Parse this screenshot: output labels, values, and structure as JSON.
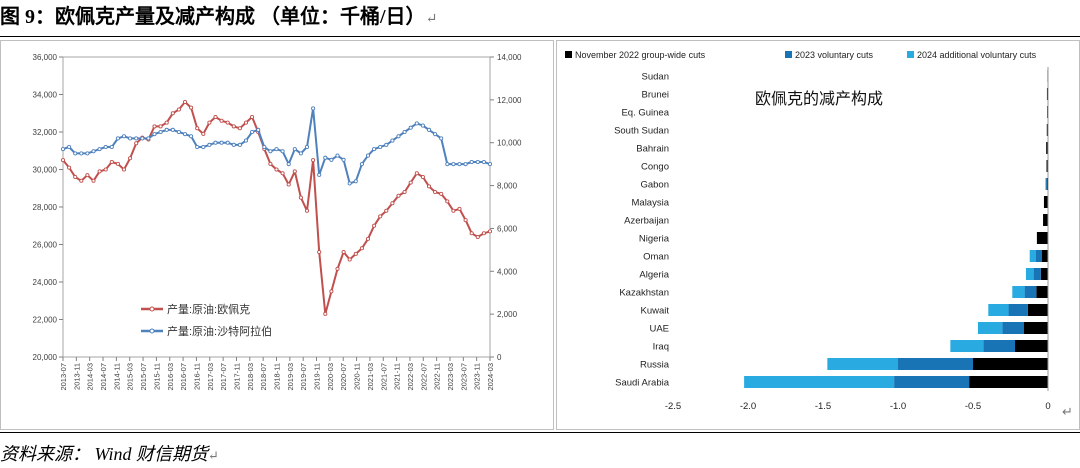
{
  "page": {
    "title": "图 9：欧佩克产量及减产构成 （单位：千桶/日）",
    "return_mark": "↵",
    "source": "资料来源： Wind 财信期货"
  },
  "chart_data": [
    {
      "type": "line",
      "title": "",
      "left_axis": {
        "ylim": [
          20000,
          36000
        ],
        "ticks": [
          "20,000",
          "22,000",
          "24,000",
          "26,000",
          "28,000",
          "30,000",
          "32,000",
          "34,000",
          "36,000"
        ]
      },
      "right_axis": {
        "ylim": [
          0,
          14000
        ],
        "ticks": [
          "0",
          "2,000",
          "4,000",
          "6,000",
          "8,000",
          "10,000",
          "12,000",
          "14,000"
        ]
      },
      "x_ticks": [
        "2013-07",
        "2013-11",
        "2014-03",
        "2014-07",
        "2014-11",
        "2015-03",
        "2015-07",
        "2015-11",
        "2016-03",
        "2016-07",
        "2016-11",
        "2017-03",
        "2017-07",
        "2017-11",
        "2018-03",
        "2018-07",
        "2018-11",
        "2019-03",
        "2019-07",
        "2019-11",
        "2020-03",
        "2020-07",
        "2020-11",
        "2021-03",
        "2021-07",
        "2021-11",
        "2022-03",
        "2022-07",
        "2022-11",
        "2023-03",
        "2023-07",
        "2023-11",
        "2024-03"
      ],
      "series": [
        {
          "name": "产量:原油:欧佩克",
          "axis": "left",
          "color": "#c0504d",
          "values": [
            30500,
            30100,
            29600,
            29400,
            29700,
            29400,
            29900,
            30000,
            30400,
            30300,
            30000,
            30600,
            31400,
            31700,
            31600,
            32300,
            32300,
            32500,
            33000,
            33200,
            33600,
            33300,
            32200,
            31900,
            32500,
            32800,
            32600,
            32500,
            32300,
            32200,
            32500,
            32800,
            32000,
            31100,
            30300,
            30000,
            29800,
            29200,
            29900,
            28500,
            27800,
            30500,
            25600,
            22300,
            23500,
            24700,
            25600,
            25200,
            25500,
            25800,
            26300,
            27000,
            27500,
            27800,
            28200,
            28600,
            28800,
            29300,
            29800,
            29600,
            29100,
            28800,
            28700,
            28300,
            27800,
            27900,
            27300,
            26600,
            26400,
            26600,
            26700
          ]
        },
        {
          "name": "产量:原油:沙特阿拉伯",
          "axis": "right",
          "color": "#4f81bd",
          "values": [
            9700,
            9800,
            9500,
            9500,
            9500,
            9600,
            9700,
            9800,
            9800,
            10200,
            10300,
            10200,
            10200,
            10200,
            10200,
            10400,
            10500,
            10600,
            10600,
            10500,
            10400,
            10300,
            9800,
            9800,
            9900,
            10000,
            10000,
            10000,
            9900,
            9900,
            10100,
            10500,
            10600,
            9800,
            9600,
            9700,
            9600,
            9000,
            9700,
            9500,
            9800,
            11600,
            8500,
            9300,
            9200,
            9400,
            9200,
            8100,
            8200,
            9000,
            9400,
            9700,
            9800,
            9900,
            10100,
            10300,
            10500,
            10700,
            10900,
            10800,
            10600,
            10400,
            10200,
            9000,
            9000,
            9000,
            9000,
            9100,
            9100,
            9100,
            9000
          ]
        }
      ]
    },
    {
      "type": "bar",
      "title": "欧佩克的减产构成",
      "orientation": "horizontal",
      "stacked": true,
      "categories": [
        "Sudan",
        "Brunei",
        "Eq. Guinea",
        "South Sudan",
        "Bahrain",
        "Congo",
        "Gabon",
        "Malaysia",
        "Azerbaijan",
        "Nigeria",
        "Oman",
        "Algeria",
        "Kazakhstan",
        "Kuwait",
        "UAE",
        "Iraq",
        "Russia",
        "Saudi Arabia"
      ],
      "series": [
        {
          "name": "November 2022 group-wide cuts",
          "color": "#000000",
          "values": [
            -0.004,
            -0.007,
            -0.006,
            -0.008,
            -0.012,
            -0.01,
            -0.008,
            -0.027,
            -0.033,
            -0.074,
            -0.04,
            -0.048,
            -0.078,
            -0.135,
            -0.16,
            -0.22,
            -0.5,
            -0.526
          ]
        },
        {
          "name": "2023 voluntary cuts",
          "color": "#1874b4",
          "values": [
            0,
            0,
            0,
            0,
            0,
            0,
            -0.008,
            0,
            0,
            0,
            -0.04,
            -0.048,
            -0.078,
            -0.128,
            -0.144,
            -0.211,
            -0.5,
            -0.5
          ]
        },
        {
          "name": "2024 additional voluntary cuts",
          "color": "#29abe2",
          "values": [
            0,
            0,
            0,
            0,
            0,
            0,
            0,
            0,
            0,
            0,
            -0.042,
            -0.051,
            -0.082,
            -0.135,
            -0.163,
            -0.22,
            -0.471,
            -1.0
          ]
        }
      ],
      "xlim": [
        -2.5,
        0
      ],
      "x_ticks": [
        "-2.5",
        "-2.0",
        "-1.5",
        "-1.0",
        "-0.5",
        "0"
      ],
      "legend": "top"
    }
  ]
}
